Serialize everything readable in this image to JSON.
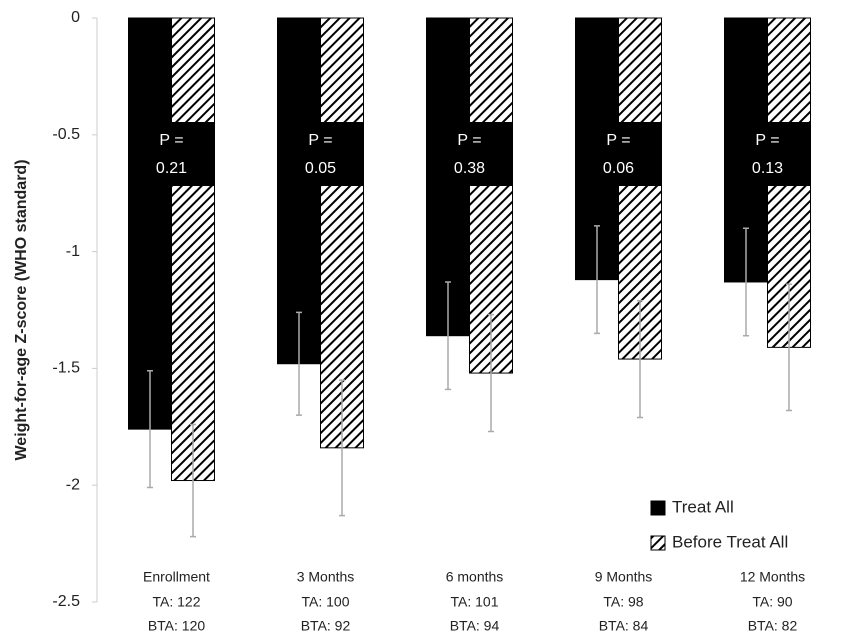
{
  "chart_data": {
    "type": "bar",
    "y_label": "Weight-for-age Z-score (WHO standard)",
    "categories": [
      "Enrollment",
      "3 Months",
      "6 months",
      "9 Months",
      "12 Months"
    ],
    "category_sublabels": [
      [
        "TA: 122",
        "BTA: 120"
      ],
      [
        "TA: 100",
        "BTA: 92"
      ],
      [
        "TA: 101",
        "BTA: 94"
      ],
      [
        "TA: 98",
        "BTA: 84"
      ],
      [
        "TA: 90",
        "BTA: 82"
      ]
    ],
    "series": [
      {
        "name": "Treat All",
        "color": "#000000",
        "pattern": "solid",
        "values": [
          -1.76,
          -1.48,
          -1.36,
          -1.12,
          -1.13
        ],
        "errors": [
          0.25,
          0.22,
          0.23,
          0.23,
          0.23
        ]
      },
      {
        "name": "Before Treat All",
        "color": "#000000",
        "pattern": "hatch",
        "values": [
          -1.98,
          -1.84,
          -1.52,
          -1.46,
          -1.41
        ],
        "errors": [
          0.24,
          0.29,
          0.25,
          0.25,
          0.27
        ]
      }
    ],
    "annotations": [
      [
        "P =",
        "0.21"
      ],
      [
        "P =",
        "0.05"
      ],
      [
        "P =",
        "0.38"
      ],
      [
        "P =",
        "0.06"
      ],
      [
        "P =",
        "0.13"
      ]
    ],
    "error_color": "#aaaaaa",
    "ylim": [
      -2.5,
      0
    ],
    "yticks": [
      0,
      -0.5,
      -1,
      -1.5,
      -2,
      -2.5
    ],
    "legend": "bottom-right"
  }
}
